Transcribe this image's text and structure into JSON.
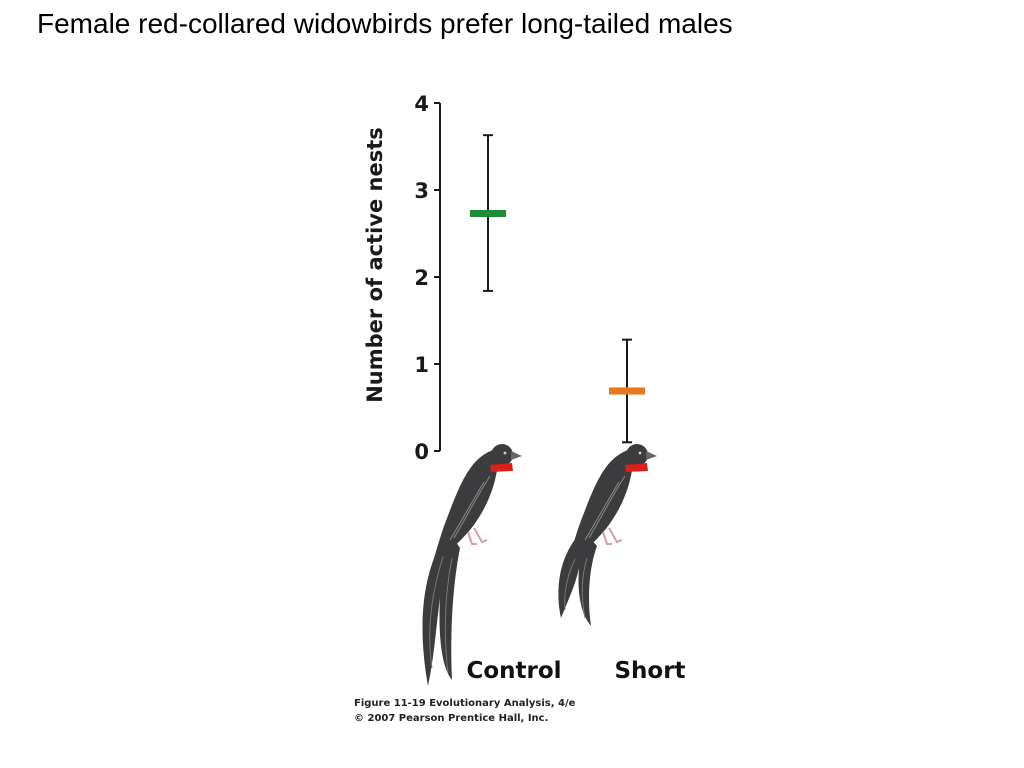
{
  "slide": {
    "title": "Female red-collared widowbirds prefer long-tailed males"
  },
  "chart_data": {
    "type": "scatter",
    "title": "",
    "xlabel": "",
    "ylabel": "Number of active nests",
    "ylim": [
      0,
      4
    ],
    "yticks": [
      0,
      1,
      2,
      3,
      4
    ],
    "categories": [
      "Control",
      "Short"
    ],
    "points": [
      {
        "category": "Control",
        "mean": 2.73,
        "lower": 1.84,
        "upper": 3.63,
        "color": "#1e8a3a"
      },
      {
        "category": "Short",
        "mean": 0.69,
        "lower": 0.1,
        "upper": 1.28,
        "color": "#e8761d"
      }
    ],
    "grid": false,
    "legend": "none",
    "category_icons": [
      "widowbird-long-tail-icon",
      "widowbird-short-tail-icon"
    ]
  },
  "colors": {
    "bird_body": "#3c3c3e",
    "bird_collar": "#d9201c",
    "axis": "#1a1a1a"
  },
  "caption": {
    "line1": "Figure 11-19  Evolutionary Analysis, 4/e",
    "line2": "© 2007 Pearson Prentice Hall, Inc."
  }
}
